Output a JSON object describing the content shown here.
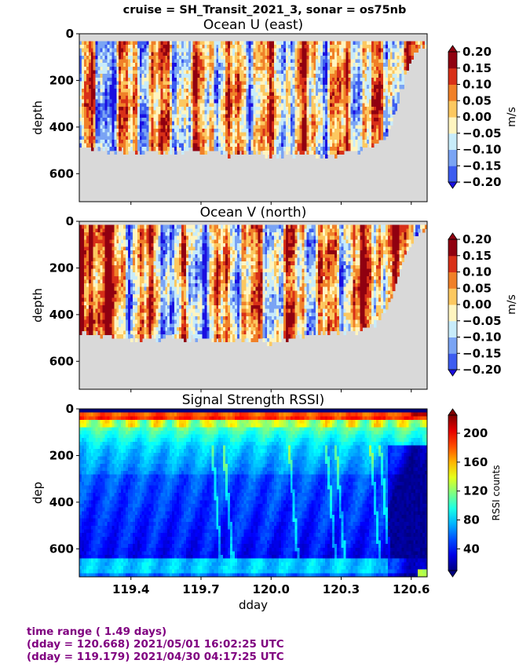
{
  "suptitle": "cruise = SH_Transit_2021_3,  sonar = os75nb",
  "footer": {
    "line1": "time range ( 1.49 days)",
    "line2": "(dday = 120.668) 2021/05/01 16:02:25 UTC",
    "line3": "(dday = 119.179) 2021/04/30 04:17:25 UTC"
  },
  "colors": {
    "background_fill": "#d9d9d9",
    "footer_text": "#800080"
  },
  "chart_data": [
    {
      "type": "heatmap",
      "title": "Ocean U (east)",
      "ylabel": "depth",
      "xlim": [
        119.179,
        120.668
      ],
      "ylim": [
        720,
        0
      ],
      "yticks": [
        "0",
        "200",
        "400",
        "600"
      ],
      "xticks": [
        119.4,
        119.7,
        120.0,
        120.3,
        120.6
      ],
      "data_depth_top": 25,
      "bottom_depth_profile": [
        [
          119.179,
          480
        ],
        [
          119.25,
          495
        ],
        [
          119.35,
          505
        ],
        [
          119.45,
          508
        ],
        [
          119.55,
          505
        ],
        [
          119.65,
          500
        ],
        [
          119.75,
          505
        ],
        [
          119.82,
          515
        ],
        [
          119.9,
          510
        ],
        [
          120.0,
          520
        ],
        [
          120.1,
          515
        ],
        [
          120.2,
          522
        ],
        [
          120.3,
          515
        ],
        [
          120.38,
          500
        ],
        [
          120.45,
          475
        ],
        [
          120.5,
          420
        ],
        [
          120.56,
          230
        ],
        [
          120.6,
          110
        ],
        [
          120.63,
          60
        ]
      ],
      "colorbar": {
        "label": "m/s",
        "levels": [
          -0.2,
          -0.15,
          -0.1,
          -0.05,
          0.0,
          0.05,
          0.1,
          0.15,
          0.2
        ],
        "tick_labels": [
          "−0.20",
          "−0.15",
          "−0.10",
          "−0.05",
          "0.00",
          "0.05",
          "0.10",
          "0.15",
          "0.20"
        ],
        "colors": [
          "#1a0fe0",
          "#3c5cf0",
          "#7aa4f4",
          "#c8ecfa",
          "#fff5c0",
          "#fcc860",
          "#f08028",
          "#d83018",
          "#900010"
        ]
      }
    },
    {
      "type": "heatmap",
      "title": "Ocean V (north)",
      "ylabel": "depth",
      "xlim": [
        119.179,
        120.668
      ],
      "ylim": [
        720,
        0
      ],
      "yticks": [
        "0",
        "200",
        "400",
        "600"
      ],
      "xticks": [
        119.4,
        119.7,
        120.0,
        120.3,
        120.6
      ],
      "data_depth_top": 20,
      "bottom_depth_profile": [
        [
          119.179,
          480
        ],
        [
          119.25,
          485
        ],
        [
          119.32,
          500
        ],
        [
          119.4,
          505
        ],
        [
          119.5,
          500
        ],
        [
          119.6,
          505
        ],
        [
          119.7,
          500
        ],
        [
          119.8,
          515
        ],
        [
          119.9,
          505
        ],
        [
          120.0,
          520
        ],
        [
          120.05,
          505
        ],
        [
          120.15,
          490
        ],
        [
          120.25,
          475
        ],
        [
          120.35,
          470
        ],
        [
          120.45,
          440
        ],
        [
          120.5,
          360
        ],
        [
          120.55,
          220
        ],
        [
          120.6,
          90
        ],
        [
          120.63,
          40
        ]
      ],
      "colorbar": {
        "label": "m/s",
        "levels": [
          -0.2,
          -0.15,
          -0.1,
          -0.05,
          0.0,
          0.05,
          0.1,
          0.15,
          0.2
        ],
        "tick_labels": [
          "−0.20",
          "−0.15",
          "−0.10",
          "−0.05",
          "0.00",
          "0.05",
          "0.10",
          "0.15",
          "0.20"
        ],
        "colors": [
          "#1a0fe0",
          "#3c5cf0",
          "#7aa4f4",
          "#c8ecfa",
          "#fff5c0",
          "#fcc860",
          "#f08028",
          "#d83018",
          "#900010"
        ]
      }
    },
    {
      "type": "heatmap",
      "title": "Signal Strength RSSI)",
      "ylabel": "dep",
      "xlabel": "dday",
      "xlim": [
        119.179,
        120.668
      ],
      "ylim": [
        720,
        0
      ],
      "yticks": [
        "0",
        "200",
        "400",
        "600"
      ],
      "xticks": [
        119.4,
        119.7,
        120.0,
        120.3,
        120.6
      ],
      "xtick_labels": [
        "119.4",
        "119.7",
        "120.0",
        "120.3",
        "120.6"
      ],
      "data_depth_top": 10,
      "colorbar": {
        "label": "RSSI counts",
        "range": [
          10,
          225
        ],
        "ticks": [
          40,
          80,
          120,
          160,
          200
        ],
        "tick_labels": [
          "40",
          "80",
          "120",
          "160",
          "200"
        ]
      }
    }
  ]
}
